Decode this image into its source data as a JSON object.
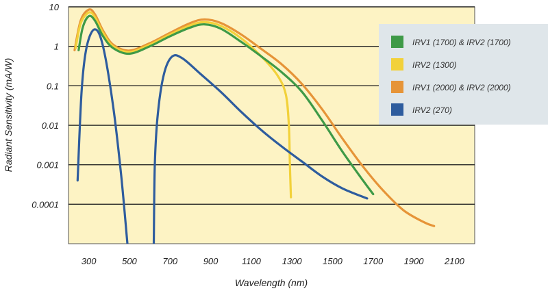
{
  "chart_data": {
    "type": "line",
    "title": "",
    "xlabel": "Wavelength (nm)",
    "ylabel": "Radiant Sensitivity (mA/W)",
    "xlim": [
      200,
      2200
    ],
    "ylim": [
      1e-05,
      10
    ],
    "yscale": "log",
    "x_ticks": [
      "300",
      "500",
      "700",
      "900",
      "1100",
      "1300",
      "1500",
      "1700",
      "1900",
      "2100"
    ],
    "y_ticks": [
      "10",
      "1",
      "0.1",
      "0.01",
      "0.001",
      "0.0001"
    ],
    "y_ticks_top": "10",
    "grid": "horizontal",
    "legend_position": "top-right",
    "series": [
      {
        "name": "IRV1 (1700) & IRV2 (1700)",
        "color": "#3e9a47",
        "points": [
          [
            250,
            0.8
          ],
          [
            270,
            3
          ],
          [
            300,
            5.8
          ],
          [
            330,
            4.5
          ],
          [
            370,
            1.8
          ],
          [
            420,
            0.9
          ],
          [
            500,
            0.65
          ],
          [
            600,
            1.0
          ],
          [
            700,
            1.8
          ],
          [
            800,
            3.0
          ],
          [
            870,
            3.6
          ],
          [
            950,
            2.8
          ],
          [
            1050,
            1.3
          ],
          [
            1150,
            0.55
          ],
          [
            1250,
            0.22
          ],
          [
            1350,
            0.07
          ],
          [
            1450,
            0.013
          ],
          [
            1550,
            0.0021
          ],
          [
            1650,
            0.0004
          ],
          [
            1700,
            0.00018
          ]
        ]
      },
      {
        "name": "IRV2 (1300)",
        "color": "#f2d13a",
        "points": [
          [
            235,
            0.9
          ],
          [
            260,
            3.8
          ],
          [
            300,
            7.2
          ],
          [
            330,
            5.5
          ],
          [
            370,
            2.2
          ],
          [
            420,
            1.0
          ],
          [
            500,
            0.72
          ],
          [
            600,
            1.1
          ],
          [
            700,
            2.0
          ],
          [
            800,
            3.4
          ],
          [
            870,
            4.1
          ],
          [
            950,
            3.3
          ],
          [
            1050,
            1.6
          ],
          [
            1150,
            0.55
          ],
          [
            1230,
            0.18
          ],
          [
            1270,
            0.06
          ],
          [
            1285,
            0.01
          ],
          [
            1290,
            0.001
          ],
          [
            1295,
            0.00015
          ]
        ]
      },
      {
        "name": "IRV1 (2000) & IRV2 (2000)",
        "color": "#e69438",
        "points": [
          [
            230,
            0.8
          ],
          [
            260,
            4.5
          ],
          [
            300,
            8.5
          ],
          [
            330,
            6.5
          ],
          [
            370,
            2.5
          ],
          [
            420,
            1.1
          ],
          [
            500,
            0.78
          ],
          [
            600,
            1.2
          ],
          [
            700,
            2.2
          ],
          [
            800,
            3.9
          ],
          [
            870,
            4.8
          ],
          [
            950,
            3.9
          ],
          [
            1050,
            2.0
          ],
          [
            1150,
            0.85
          ],
          [
            1250,
            0.35
          ],
          [
            1350,
            0.11
          ],
          [
            1450,
            0.025
          ],
          [
            1550,
            0.0045
          ],
          [
            1650,
            0.0009
          ],
          [
            1750,
            0.00022
          ],
          [
            1850,
            7e-05
          ],
          [
            1950,
            3.5e-05
          ],
          [
            2000,
            2.8e-05
          ]
        ]
      },
      {
        "name": "IRV2 (270)",
        "color": "#2e5c9e",
        "segments": [
          [
            [
              245,
              0.0004
            ],
            [
              265,
              0.08
            ],
            [
              290,
              1.0
            ],
            [
              330,
              2.7
            ],
            [
              370,
              1.0
            ],
            [
              420,
              0.03
            ],
            [
              460,
              0.0005
            ],
            [
              490,
              1e-05
            ]
          ],
          [
            [
              620,
              1e-05
            ],
            [
              625,
              0.001
            ],
            [
              640,
              0.02
            ],
            [
              670,
              0.2
            ],
            [
              710,
              0.55
            ],
            [
              760,
              0.5
            ],
            [
              850,
              0.2
            ],
            [
              950,
              0.07
            ],
            [
              1050,
              0.022
            ],
            [
              1150,
              0.0075
            ],
            [
              1250,
              0.0029
            ],
            [
              1350,
              0.0012
            ],
            [
              1450,
              0.0005
            ],
            [
              1550,
              0.00025
            ],
            [
              1670,
              0.00014
            ]
          ]
        ]
      }
    ]
  }
}
